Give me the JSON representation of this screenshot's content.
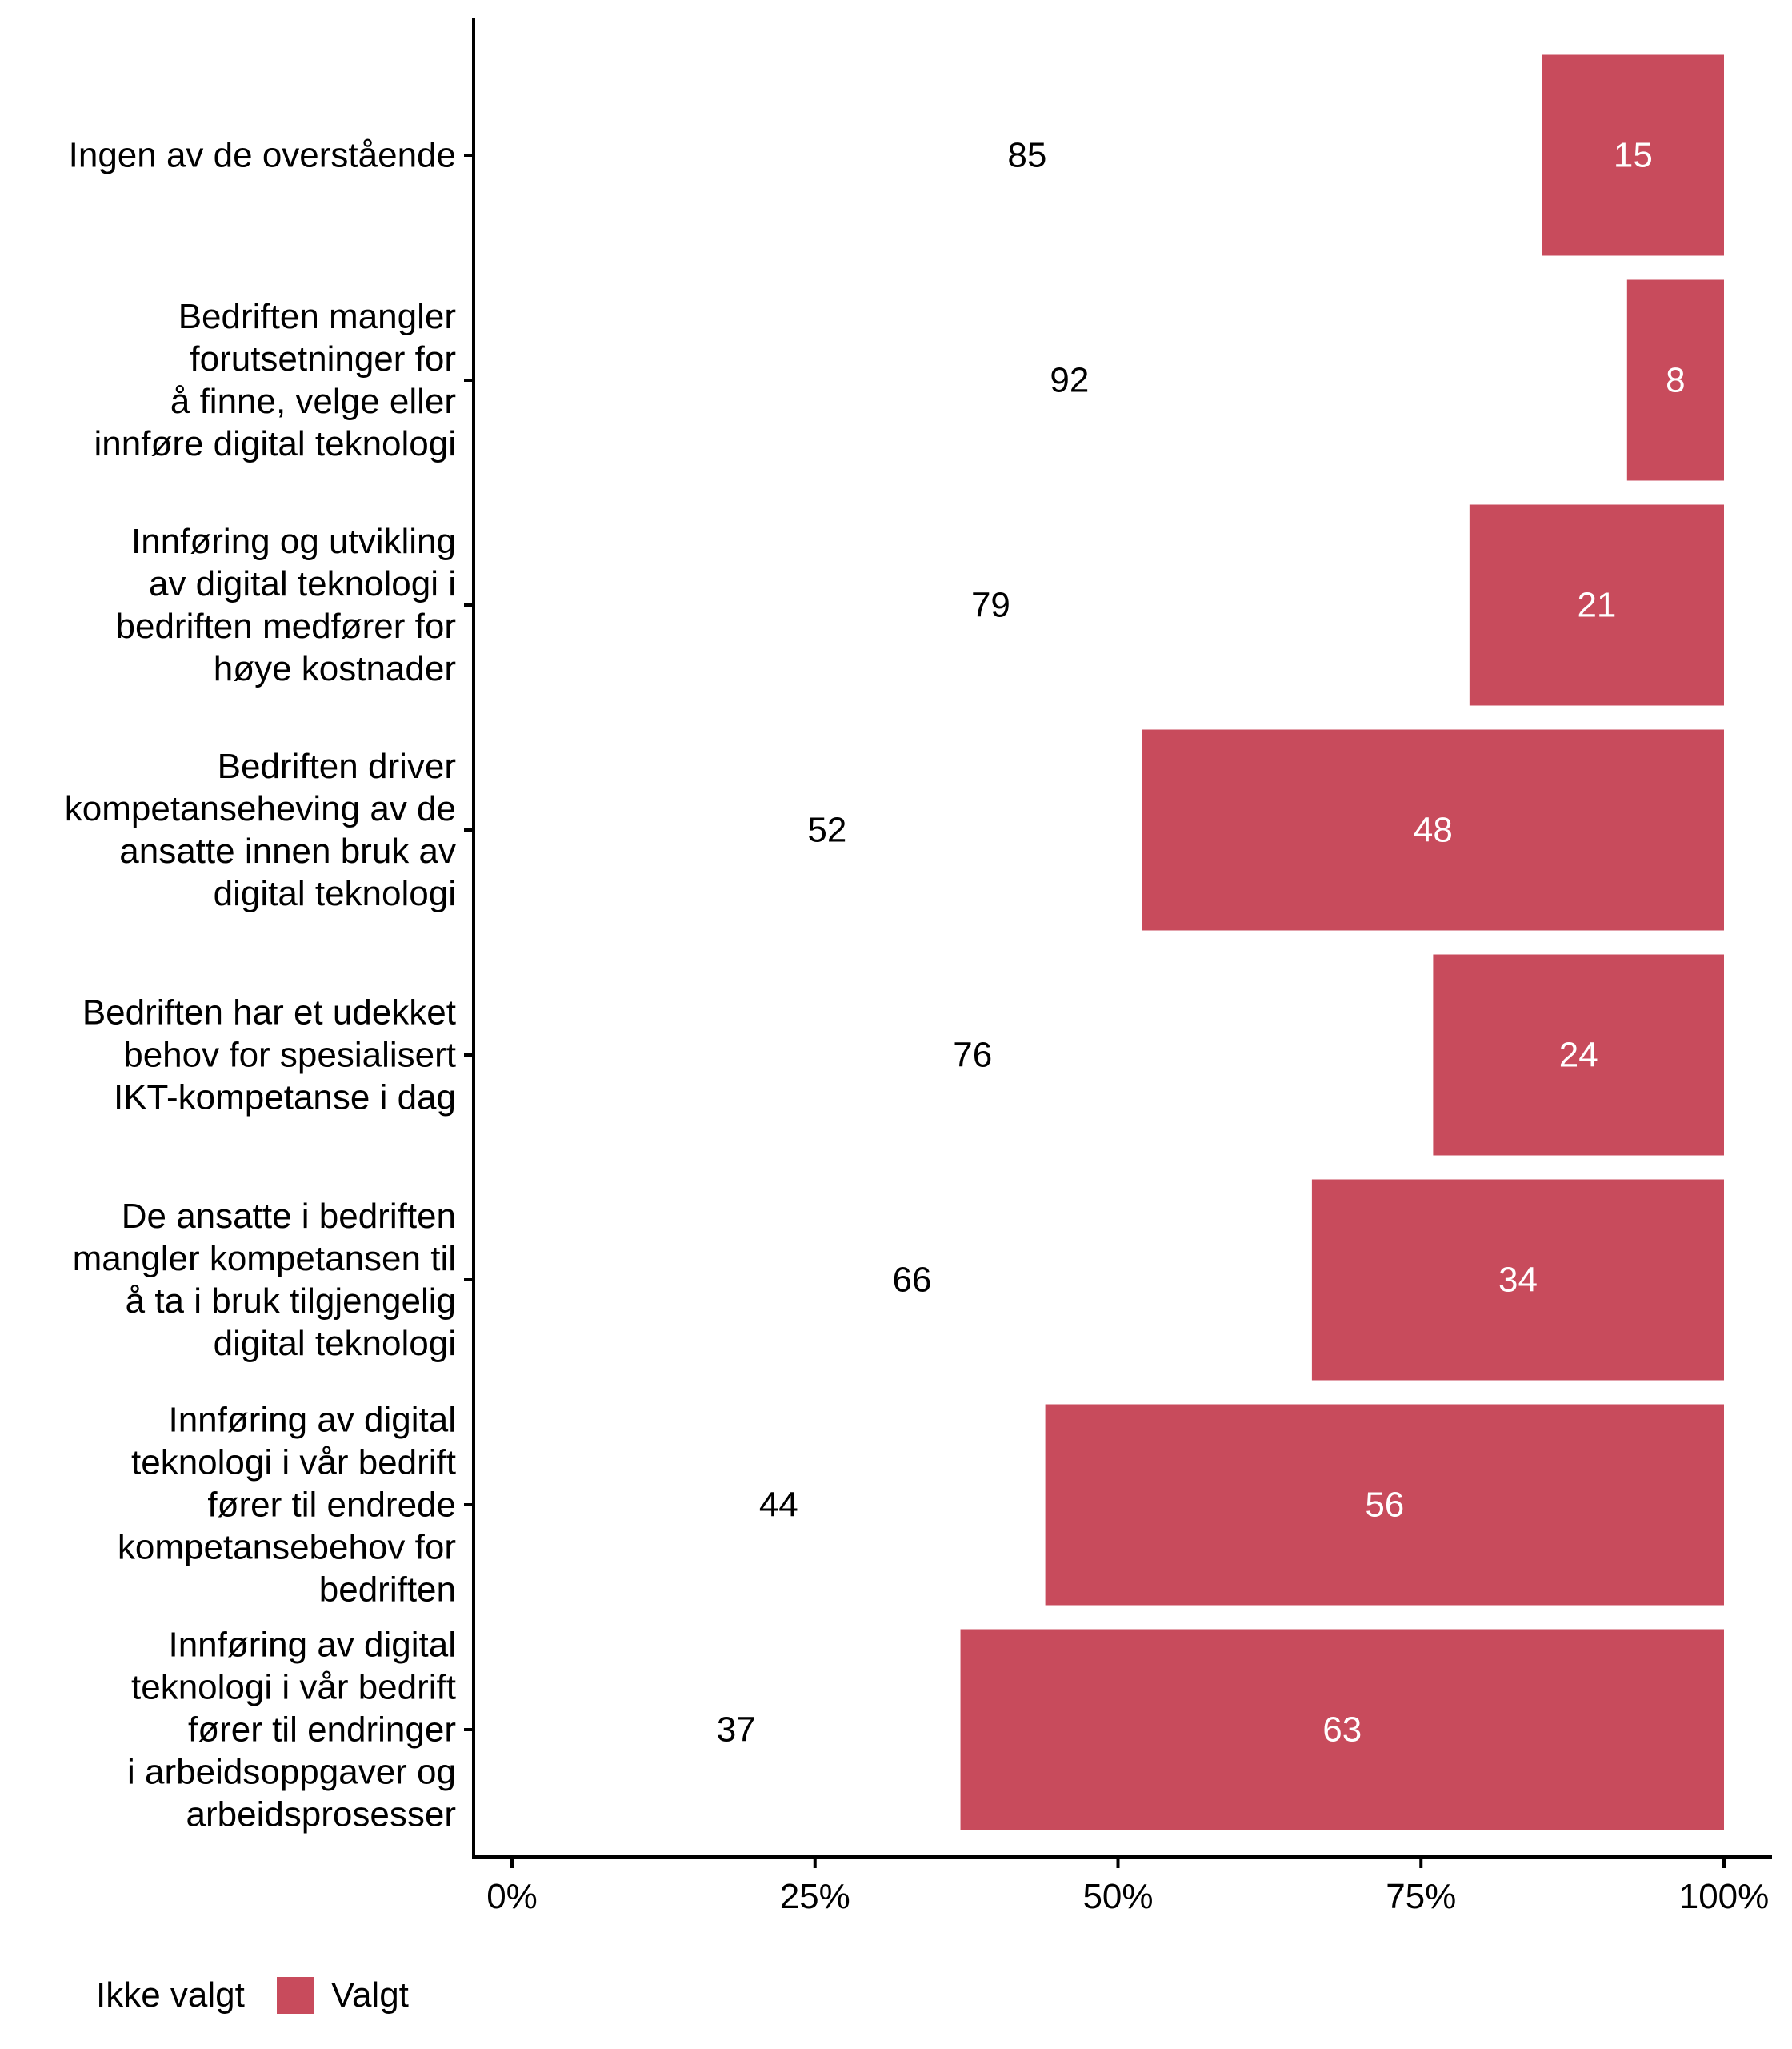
{
  "chart_data": {
    "type": "bar",
    "orientation": "horizontal",
    "stacked": true,
    "percent_scale": true,
    "title": "",
    "xlabel": "",
    "ylabel": "",
    "xlim": [
      0,
      100
    ],
    "x_ticks": [
      "0%",
      "25%",
      "50%",
      "75%",
      "100%"
    ],
    "x_tick_values": [
      0,
      25,
      50,
      75,
      100
    ],
    "grid": false,
    "legend_position": "bottom-left",
    "categories": [
      "Ingen av de overstående",
      "Bedriften mangler forutsetninger for å finne, velge eller innføre digital teknologi",
      "Innføring og utvikling av digital teknologi i bedriften medfører for høye kostnader",
      "Bedriften driver kompetanseheving av de ansatte innen bruk av digital teknologi",
      "Bedriften har et udekket behov for spesialisert IKT-kompetanse i dag",
      "De ansatte i bedriften mangler kompetansen til å ta i bruk tilgjengelig digital teknologi",
      "Innføring av digital teknologi i vår bedrift fører til endrede kompetansebehov for bedriften",
      "Innføring av digital teknologi i vår bedrift fører til endringer i arbeidsoppgaver og arbeidsprosesser"
    ],
    "category_lines": [
      [
        "Ingen av de overstående"
      ],
      [
        "Bedriften mangler",
        "forutsetninger for",
        "å finne, velge eller",
        "innføre digital teknologi"
      ],
      [
        "Innføring og utvikling",
        "av digital teknologi i",
        "bedriften medfører for",
        "høye kostnader"
      ],
      [
        "Bedriften driver",
        "kompetanseheving av de",
        "ansatte innen bruk av",
        "digital teknologi"
      ],
      [
        "Bedriften har et udekket",
        "behov for spesialisert",
        "IKT-kompetanse i dag"
      ],
      [
        "De ansatte i bedriften",
        "mangler kompetansen til",
        "å ta i bruk tilgjengelig",
        "digital teknologi"
      ],
      [
        "Innføring av digital",
        "teknologi i vår bedrift",
        "fører til endrede",
        "kompetansebehov for",
        "bedriften"
      ],
      [
        "Innføring av digital",
        "teknologi i vår bedrift",
        "fører til endringer",
        "i arbeidsoppgaver og",
        "arbeidsprosesser"
      ]
    ],
    "series": [
      {
        "name": "Ikke valgt",
        "color": "#FFFFFF",
        "values": [
          85,
          92,
          79,
          52,
          76,
          66,
          44,
          37
        ]
      },
      {
        "name": "Valgt",
        "color": "#C84B5C",
        "values": [
          15,
          8,
          21,
          48,
          24,
          34,
          56,
          63
        ]
      }
    ]
  },
  "legend": {
    "items": [
      {
        "label": "Ikke valgt",
        "color": "#FFFFFF"
      },
      {
        "label": "Valgt",
        "color": "#C84B5C"
      }
    ]
  }
}
